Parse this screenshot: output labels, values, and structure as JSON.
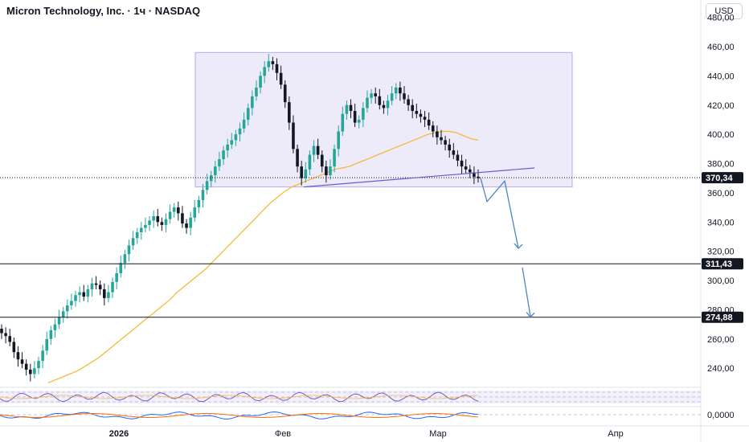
{
  "header": {
    "title": "Micron Technology, Inc. · 1ч · NASDAQ",
    "currency": "USD"
  },
  "chart_data": {
    "type": "candlestick",
    "title": "Micron Technology, Inc. · 1ч · NASDAQ",
    "ylim": [
      228,
      482
    ],
    "y_ticks": [
      "480,00",
      "460,00",
      "440,00",
      "420,00",
      "400,00",
      "380,00",
      "360,00",
      "340,00",
      "320,00",
      "300,00",
      "280,00",
      "260,00",
      "240,00"
    ],
    "x_ticks": [
      "2026",
      "Фев",
      "Мар",
      "Апр"
    ],
    "price_labels": [
      {
        "text": "370,34",
        "value": 370.34,
        "style": "dotted"
      },
      {
        "text": "311,43",
        "value": 311.43,
        "style": "solid"
      },
      {
        "text": "274,88",
        "value": 274.88,
        "style": "solid"
      }
    ],
    "series": [
      {
        "name": "close",
        "values": [
          264,
          262,
          258,
          251,
          246,
          243,
          239,
          236,
          240,
          245,
          252,
          260,
          266,
          270,
          275,
          279,
          283,
          286,
          290,
          292,
          289,
          294,
          298,
          297,
          294,
          288,
          292,
          299,
          305,
          312,
          318,
          324,
          329,
          333,
          336,
          338,
          341,
          344,
          340,
          338,
          342,
          347,
          350,
          346,
          339,
          336,
          343,
          350,
          355,
          362,
          368,
          372,
          378,
          383,
          389,
          393,
          396,
          400,
          404,
          410,
          418,
          426,
          432,
          440,
          446,
          450,
          448,
          442,
          434,
          422,
          408,
          390,
          378,
          370,
          376,
          386,
          392,
          386,
          378,
          372,
          378,
          390,
          402,
          414,
          420,
          416,
          408,
          410,
          418,
          425,
          428,
          426,
          420,
          418,
          423,
          428,
          432,
          428,
          424,
          420,
          416,
          414,
          412,
          410,
          406,
          402,
          398,
          396,
          393,
          389,
          386,
          382,
          378,
          376,
          374,
          371,
          370
        ]
      },
      {
        "name": "MA",
        "values": [
          230,
          232,
          234,
          236,
          238,
          241,
          244,
          247,
          251,
          255,
          259,
          263,
          267,
          271,
          275,
          279,
          283,
          287,
          292,
          296,
          300,
          304,
          308,
          313,
          318,
          323,
          328,
          333,
          338,
          343,
          348,
          353,
          357,
          361,
          364,
          366,
          368,
          370,
          372,
          374,
          376,
          377,
          378,
          380,
          382,
          384,
          386,
          388,
          390,
          392,
          394,
          396,
          398,
          400,
          401,
          402,
          402,
          401,
          399,
          397,
          396
        ]
      }
    ],
    "rectangle": {
      "y_top": 456,
      "y_bottom": 364
    },
    "projection_path": [
      370,
      354,
      368,
      322,
      310,
      275
    ],
    "annotations": [
      "311,43",
      "274,88",
      "370,34"
    ],
    "indicators": [
      {
        "name": "RSI",
        "bands": [
          70,
          50,
          30
        ]
      },
      {
        "name": "MACD",
        "zero_label": "0,0000"
      }
    ]
  }
}
